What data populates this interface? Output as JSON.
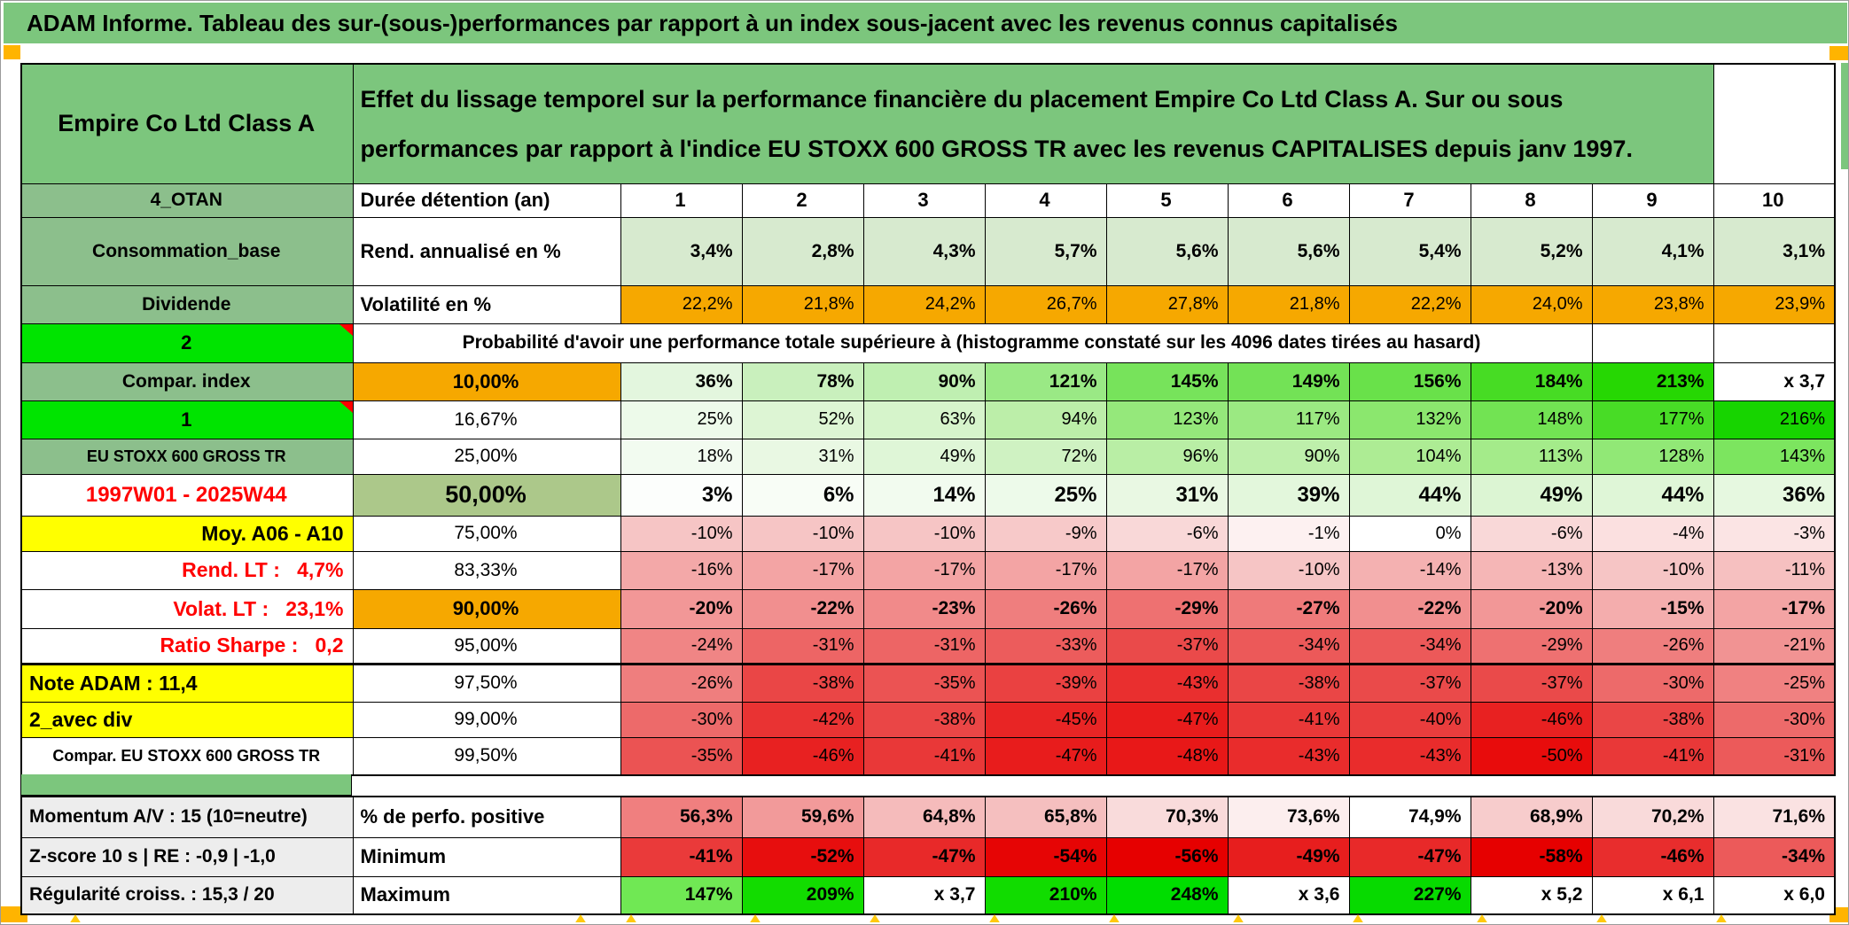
{
  "window": {
    "title_bar": "ADAM Informe. Tableau des sur-(sous-)performances par rapport à un index sous-jacent avec les revenus connus capitalisés"
  },
  "header": {
    "instrument": "Empire Co Ltd Class A",
    "description": "Effet du lissage temporel sur la performance financière du placement Empire Co Ltd Class A. Sur ou sous performances par rapport à l'indice EU STOXX 600 GROSS TR avec les revenus CAPITALISES depuis janv 1997."
  },
  "colors": {
    "band_green": "#7CC67D",
    "label_green": "#8CBF8C",
    "bright_green": "#00E400",
    "cell_orange": "#F6A800",
    "marker_orange": "#FFB400",
    "yellow": "#FFFF00",
    "sage": "#ACC88A",
    "gray_label": "#EDEDED",
    "red_text": "#FF0000"
  },
  "columns": [
    "1",
    "2",
    "3",
    "4",
    "5",
    "6",
    "7",
    "8",
    "9",
    "10"
  ],
  "table": {
    "rows": [
      {
        "name": "duration",
        "a": {
          "t": "4_OTAN",
          "bg": "#8CBF8C",
          "al": "c",
          "b": 1,
          "fs": 21
        },
        "b": {
          "t": "Durée détention (an)",
          "al": "l",
          "b": 1,
          "fs": 22
        },
        "cells": {
          "v": [
            "1",
            "2",
            "3",
            "4",
            "5",
            "6",
            "7",
            "8",
            "9",
            "10"
          ],
          "al": "c",
          "b": 1,
          "fs": 22
        }
      },
      {
        "name": "rend_annualise",
        "a": {
          "t": "Consommation_base",
          "bg": "#8CBF8C",
          "al": "c",
          "b": 1,
          "fs": 21
        },
        "b": {
          "t": "Rend. annualisé en %",
          "al": "l",
          "b": 1,
          "fs": 22
        },
        "cells": {
          "v": [
            "3,4%",
            "2,8%",
            "4,3%",
            "5,7%",
            "5,6%",
            "5,6%",
            "5,4%",
            "5,2%",
            "4,1%",
            "3,1%"
          ],
          "bg": [
            "#D7EACF",
            "#D7EACF",
            "#D7EACF",
            "#D7EACF",
            "#D7EACF",
            "#D7EACF",
            "#D7EACF",
            "#D7EACF",
            "#D7EACF",
            "#D7EACF"
          ],
          "b": 1,
          "fs": 21
        }
      },
      {
        "name": "volatilite",
        "a": {
          "t": "Dividende",
          "bg": "#8CBF8C",
          "al": "c",
          "b": 1,
          "fs": 21
        },
        "b": {
          "t": "Volatilité en %",
          "al": "l",
          "b": 1,
          "fs": 22
        },
        "cells": {
          "v": [
            "22,2%",
            "21,8%",
            "24,2%",
            "26,7%",
            "27,8%",
            "21,8%",
            "22,2%",
            "24,0%",
            "23,8%",
            "23,9%"
          ],
          "bg": [
            "#F6A800",
            "#F6A800",
            "#F6A800",
            "#F6A800",
            "#F6A800",
            "#F6A800",
            "#F6A800",
            "#F6A800",
            "#F6A800",
            "#F6A800"
          ],
          "fs": 20
        }
      },
      {
        "name": "probabilite",
        "a": {
          "t": "2",
          "bg": "#00E400",
          "al": "c",
          "b": 1,
          "fs": 22,
          "mk": 1
        },
        "span": {
          "t": "Probabilité d'avoir une performance totale supérieure à (histogramme constaté sur les 4096 dates tirées au hasard)",
          "al": "c",
          "b": 1,
          "fs": 21
        }
      },
      {
        "name": "p10",
        "a": {
          "t": "Compar. index",
          "bg": "#8CBF8C",
          "al": "c",
          "b": 1,
          "fs": 21
        },
        "b": {
          "t": "10,00%",
          "bg": "#F6A800",
          "al": "c",
          "b": 1,
          "fs": 22
        },
        "cells": {
          "v": [
            "36%",
            "78%",
            "90%",
            "121%",
            "145%",
            "149%",
            "156%",
            "184%",
            "213%",
            "x 3,7"
          ],
          "bg": [
            "#E3F6DE",
            "#C9F0BD",
            "#BFEFB1",
            "#9AE985",
            "#77E35B",
            "#73E256",
            "#69E14A",
            "#47DC24",
            "#26D703",
            "#FFFFFF"
          ],
          "b": 1,
          "fs": 21
        }
      },
      {
        "name": "p16_67",
        "a": {
          "t": "1",
          "bg": "#00E400",
          "al": "c",
          "b": 1,
          "fs": 22,
          "mk": 1
        },
        "b": {
          "t": "16,67%",
          "al": "c",
          "fs": 21
        },
        "cells": {
          "v": [
            "25%",
            "52%",
            "63%",
            "94%",
            "123%",
            "117%",
            "132%",
            "148%",
            "177%",
            "216%"
          ],
          "bg": [
            "#EDFAEA",
            "#DDF5D4",
            "#D6F4CB",
            "#BCEEA9",
            "#95E87B",
            "#9BE982",
            "#8BE76E",
            "#72E353",
            "#48DC26",
            "#17D400"
          ],
          "fs": 20
        }
      },
      {
        "name": "p25",
        "a": {
          "t": "EU STOXX 600 GROSS TR",
          "bg": "#8CBF8C",
          "al": "c",
          "b": 1,
          "fs": 18
        },
        "b": {
          "t": "25,00%",
          "al": "c",
          "fs": 21
        },
        "cells": {
          "v": [
            "18%",
            "31%",
            "49%",
            "72%",
            "96%",
            "90%",
            "104%",
            "113%",
            "128%",
            "143%"
          ],
          "bg": [
            "#F2FBF0",
            "#E9F8E3",
            "#DFF6D7",
            "#CFF2C2",
            "#B9EEA5",
            "#BEEFAB",
            "#ADEC94",
            "#A4EB8A",
            "#91E876",
            "#7CE55F"
          ],
          "fs": 20
        }
      },
      {
        "name": "p50",
        "a": {
          "t": "1997W01 - 2025W44",
          "fg": "#FF0000",
          "al": "c",
          "b": 1,
          "fs": 24
        },
        "b": {
          "t": "50,00%",
          "bg": "#ACC88A",
          "al": "c",
          "b": 1,
          "fs": 27
        },
        "cells": {
          "v": [
            "3%",
            "6%",
            "14%",
            "25%",
            "31%",
            "39%",
            "44%",
            "49%",
            "44%",
            "36%"
          ],
          "bg": [
            "#FCFEFC",
            "#F8FDF6",
            "#F2FBEF",
            "#EDFAEA",
            "#E9F8E3",
            "#E3F7DC",
            "#DFF6D7",
            "#DCF5D3",
            "#DFF6D7",
            "#E6F8E0"
          ],
          "b": 1,
          "fs": 24
        }
      },
      {
        "name": "p75",
        "a": {
          "t": "Moy. A06 - A10",
          "bg": "#FFFF00",
          "al": "r",
          "b": 1,
          "fs": 23
        },
        "b": {
          "t": "75,00%",
          "al": "c",
          "fs": 21
        },
        "cells": {
          "v": [
            "-10%",
            "-10%",
            "-10%",
            "-9%",
            "-6%",
            "-1%",
            "0%",
            "-6%",
            "-4%",
            "-3%"
          ],
          "bg": [
            "#F6C5C5",
            "#F6C5C5",
            "#F6C5C5",
            "#F7C9C9",
            "#F9D8D8",
            "#FDF1F1",
            "#FFFFFF",
            "#F9D8D8",
            "#FBE0E0",
            "#FBE4E4"
          ],
          "fs": 20
        }
      },
      {
        "name": "p83_33",
        "a": {
          "t": "Rend. LT :   4,7%",
          "fg": "#FF0000",
          "al": "r",
          "b": 1,
          "fs": 23
        },
        "b": {
          "t": "83,33%",
          "al": "c",
          "fs": 21
        },
        "cells": {
          "v": [
            "-16%",
            "-17%",
            "-17%",
            "-17%",
            "-17%",
            "-10%",
            "-14%",
            "-13%",
            "-10%",
            "-11%"
          ],
          "bg": [
            "#F3A8A8",
            "#F3A4A4",
            "#F3A4A4",
            "#F3A4A4",
            "#F3A4A4",
            "#F6C5C5",
            "#F4B1B1",
            "#F5B6B6",
            "#F6C5C5",
            "#F6C0C0"
          ],
          "fs": 20
        }
      },
      {
        "name": "p90",
        "a": {
          "t": "Volat. LT :   23,1%",
          "fg": "#FF0000",
          "al": "r",
          "b": 1,
          "fs": 23
        },
        "b": {
          "t": "90,00%",
          "bg": "#F6A800",
          "al": "c",
          "b": 1,
          "fs": 22
        },
        "cells": {
          "v": [
            "-20%",
            "-22%",
            "-23%",
            "-26%",
            "-29%",
            "-27%",
            "-22%",
            "-20%",
            "-15%",
            "-17%"
          ],
          "bg": [
            "#F29797",
            "#F18F8F",
            "#F18A8A",
            "#EF7E7E",
            "#EE7171",
            "#EF7A7A",
            "#F18F8F",
            "#F29797",
            "#F4ADAD",
            "#F3A4A4"
          ],
          "b": 1,
          "fs": 21
        }
      },
      {
        "name": "p95",
        "a": {
          "t": "Ratio Sharpe :   0,2",
          "fg": "#FF0000",
          "al": "r",
          "b": 1,
          "fs": 23
        },
        "b": {
          "t": "95,00%",
          "al": "c",
          "fs": 21
        },
        "cells": {
          "v": [
            "-24%",
            "-31%",
            "-31%",
            "-33%",
            "-37%",
            "-34%",
            "-34%",
            "-29%",
            "-26%",
            "-21%"
          ],
          "bg": [
            "#F08585",
            "#ED6565",
            "#ED6565",
            "#EC5C5C",
            "#EA4A4A",
            "#EC5959",
            "#EC5959",
            "#EE7171",
            "#EF7E7E",
            "#F19393"
          ],
          "fs": 20
        }
      },
      {
        "name": "p97_5",
        "a": {
          "t": "Note ADAM : 11,4",
          "bg": "#FFFF00",
          "al": "l",
          "b": 1,
          "fs": 23
        },
        "b": {
          "t": "97,50%",
          "al": "c",
          "fs": 21
        },
        "cells": {
          "v": [
            "-26%",
            "-38%",
            "-35%",
            "-39%",
            "-43%",
            "-38%",
            "-37%",
            "-37%",
            "-30%",
            "-25%"
          ],
          "bg": [
            "#EF7E7E",
            "#EA4646",
            "#EB5353",
            "#EA4141",
            "#E92F2F",
            "#EA4646",
            "#EA4A4A",
            "#EA4A4A",
            "#ED6A6A",
            "#F08181"
          ],
          "fs": 20
        }
      },
      {
        "name": "p99",
        "a": {
          "t": "2_avec div",
          "bg": "#FFFF00",
          "al": "l",
          "b": 1,
          "fs": 23
        },
        "b": {
          "t": "99,00%",
          "al": "c",
          "fs": 21
        },
        "cells": {
          "v": [
            "-30%",
            "-42%",
            "-38%",
            "-45%",
            "-47%",
            "-41%",
            "-40%",
            "-46%",
            "-38%",
            "-30%"
          ],
          "bg": [
            "#ED6A6A",
            "#E93333",
            "#EA4646",
            "#E82525",
            "#E81C1C",
            "#E93838",
            "#E93D3D",
            "#E82121",
            "#EA4646",
            "#ED6A6A"
          ],
          "fs": 20
        }
      },
      {
        "name": "p99_5",
        "a": {
          "t": "Compar. EU STOXX 600 GROSS TR",
          "al": "c",
          "b": 1,
          "fs": 18
        },
        "b": {
          "t": "99,50%",
          "al": "c",
          "fs": 21
        },
        "cells": {
          "v": [
            "-35%",
            "-46%",
            "-41%",
            "-47%",
            "-48%",
            "-43%",
            "-43%",
            "-50%",
            "-41%",
            "-31%"
          ],
          "bg": [
            "#EB5353",
            "#E82121",
            "#E93838",
            "#E81C1C",
            "#E81818",
            "#E92C2C",
            "#E92C2C",
            "#E80C0C",
            "#E93838",
            "#EC5A5A"
          ],
          "fs": 20
        }
      },
      {
        "name": "perf_positive",
        "a": {
          "t": "Momentum A/V : 15 (10=neutre)",
          "bg": "#EDEDED",
          "al": "l",
          "b": 1,
          "fs": 21
        },
        "b": {
          "t": "% de perfo. positive",
          "al": "l",
          "b": 1,
          "fs": 22
        },
        "cells": {
          "v": [
            "56,3%",
            "59,6%",
            "64,8%",
            "65,8%",
            "70,3%",
            "73,6%",
            "74,9%",
            "68,9%",
            "70,2%",
            "71,6%"
          ],
          "bg": [
            "#F07F7F",
            "#F29A9A",
            "#F5BBBB",
            "#F5BFBF",
            "#F9DBDB",
            "#FCEEEE",
            "#FFFFFF",
            "#F7CCCC",
            "#F9DADA",
            "#FAE2E2"
          ],
          "b": 1,
          "fs": 21
        }
      },
      {
        "name": "minimum",
        "a": {
          "t": "Z-score 10 s | RE : -0,9 | -1,0",
          "bg": "#EDEDED",
          "al": "l",
          "b": 1,
          "fs": 21
        },
        "b": {
          "t": "Minimum",
          "al": "l",
          "b": 1,
          "fs": 22
        },
        "cells": {
          "v": [
            "-41%",
            "-52%",
            "-47%",
            "-54%",
            "-56%",
            "-49%",
            "-47%",
            "-58%",
            "-46%",
            "-34%"
          ],
          "bg": [
            "#EA3A3A",
            "#E70E0E",
            "#E82929",
            "#E60505",
            "#E60000",
            "#E71E1E",
            "#E82929",
            "#E60000",
            "#E82D2D",
            "#EC5A5A"
          ],
          "b": 1,
          "fs": 21
        }
      },
      {
        "name": "maximum",
        "a": {
          "t": "Régularité croiss. : 15,3 / 20",
          "bg": "#EDEDED",
          "al": "l",
          "b": 1,
          "fs": 21
        },
        "b": {
          "t": "Maximum",
          "al": "l",
          "b": 1,
          "fs": 22
        },
        "cells": {
          "v": [
            "147%",
            "209%",
            "x 3,7",
            "210%",
            "248%",
            "x 3,6",
            "227%",
            "x 5,2",
            "x 6,1",
            "x 6,0"
          ],
          "bg": [
            "#70E854",
            "#12DC00",
            "#FFFFFF",
            "#11DC00",
            "#00DD00",
            "#FFFFFF",
            "#07DA00",
            "#FFFFFF",
            "#FFFFFF",
            "#FFFFFF"
          ],
          "b": 1,
          "fs": 21
        }
      }
    ]
  }
}
